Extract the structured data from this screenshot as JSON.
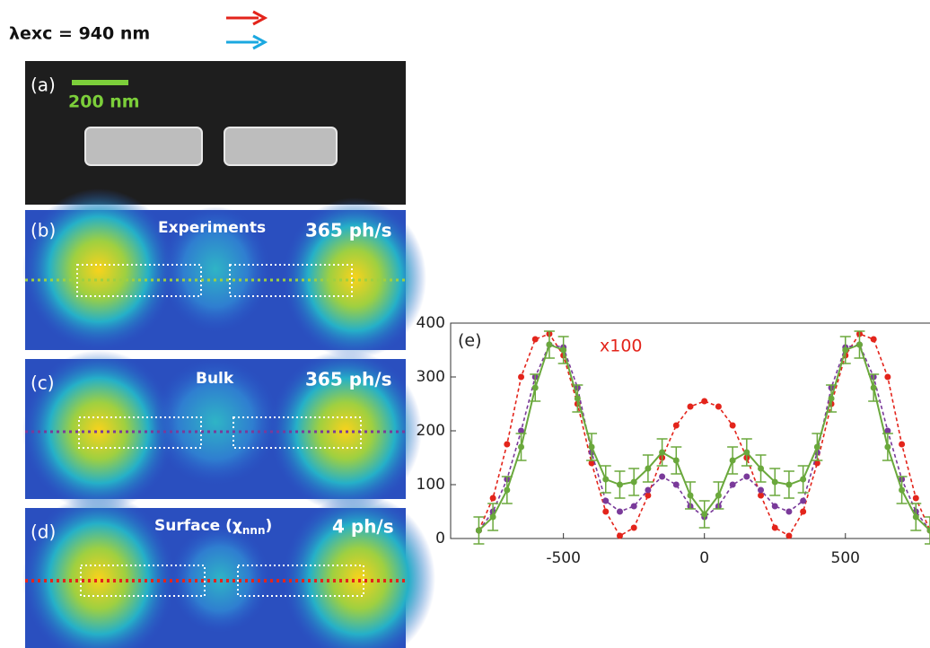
{
  "header": {
    "title": "λexc = 940 nm"
  },
  "panels": [
    {
      "label": "(a)",
      "scale_bar": "200 nm"
    },
    {
      "label": "(b)",
      "title": "Experiments",
      "rate": "365 ph/s"
    },
    {
      "label": "(c)",
      "title": "Bulk",
      "rate": "365 ph/s"
    },
    {
      "label": "(d)",
      "title": {
        "text": "Surface (χ",
        "sub": "nnn",
        "end": ")"
      },
      "rate": "4 ph/s"
    }
  ],
  "chart_data": {
    "type": "line",
    "panel_label": "(e)",
    "annotation": "x100",
    "x": [
      -800,
      -750,
      -700,
      -650,
      -600,
      -550,
      -500,
      -450,
      -400,
      -350,
      -300,
      -250,
      -200,
      -150,
      -100,
      -50,
      0,
      50,
      100,
      150,
      200,
      250,
      300,
      350,
      400,
      450,
      500,
      550,
      600,
      650,
      700,
      750,
      800
    ],
    "series": [
      {
        "color": "#e3241b",
        "style": "dashed",
        "values": [
          15,
          75,
          175,
          300,
          370,
          380,
          340,
          250,
          140,
          50,
          5,
          20,
          80,
          150,
          210,
          245,
          255,
          245,
          210,
          150,
          80,
          20,
          5,
          50,
          140,
          250,
          340,
          380,
          370,
          300,
          175,
          75,
          15
        ]
      },
      {
        "color": "#7a3a9a",
        "style": "dashed",
        "values": [
          15,
          50,
          110,
          200,
          300,
          360,
          355,
          280,
          160,
          70,
          50,
          60,
          90,
          115,
          100,
          60,
          40,
          60,
          100,
          115,
          90,
          60,
          50,
          70,
          160,
          280,
          355,
          360,
          300,
          200,
          110,
          50,
          15
        ]
      },
      {
        "color": "#6aa83c",
        "style": "solid",
        "values": [
          15,
          40,
          90,
          170,
          280,
          360,
          350,
          260,
          170,
          110,
          100,
          105,
          130,
          160,
          145,
          80,
          45,
          80,
          145,
          160,
          130,
          105,
          100,
          110,
          170,
          260,
          350,
          360,
          280,
          170,
          90,
          40,
          15
        ],
        "errors": [
          25,
          25,
          25,
          25,
          25,
          25,
          25,
          25,
          25,
          25,
          25,
          25,
          25,
          25,
          25,
          25,
          25,
          25,
          25,
          25,
          25,
          25,
          25,
          25,
          25,
          25,
          25,
          25,
          25,
          25,
          25,
          25,
          25
        ]
      }
    ],
    "xlim": [
      -900,
      800
    ],
    "ylim": [
      0,
      400
    ],
    "xticks": [
      -500,
      0,
      500
    ],
    "yticks": [
      0,
      100,
      200,
      300,
      400
    ]
  }
}
